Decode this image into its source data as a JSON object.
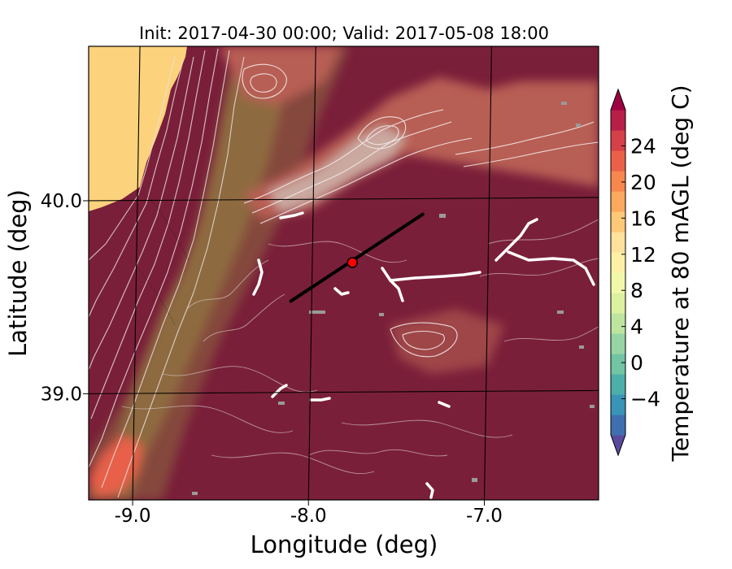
{
  "figure": {
    "title": "Init: 2017-04-30 00:00; Valid: 2017-05-08 18:00",
    "xlabel": "Longitude (deg)",
    "ylabel": "Latitude (deg)"
  },
  "map_data": {
    "type": "contour-filled map",
    "xlim": [
      -9.25,
      -6.35
    ],
    "ylim": [
      38.45,
      40.8
    ],
    "x_ticks": [
      {
        "value": -9.0,
        "label": "-9.0"
      },
      {
        "value": -8.0,
        "label": "-8.0"
      },
      {
        "value": -7.0,
        "label": "-7.0"
      }
    ],
    "y_ticks": [
      {
        "value": 39.0,
        "label": "39.0"
      },
      {
        "value": 40.0,
        "label": "40.0"
      }
    ],
    "graticule": true,
    "marker": {
      "lon": -7.75,
      "lat": 39.68,
      "color": "#ff0000"
    },
    "cross_section_line": {
      "start": [
        -8.1,
        39.48
      ],
      "end": [
        -7.35,
        39.93
      ],
      "color": "#000000"
    },
    "colors": {
      "ocean": "#fdd27c",
      "land_dominant": "#7a1f3a",
      "coast_band": "#8e6a40",
      "highlands": "#b85f54"
    }
  },
  "colorbar": {
    "label": "Temperature at 80 mAGL (deg C)",
    "range": [
      -8,
      28
    ],
    "ticks": [
      {
        "value": -4,
        "label": "−4"
      },
      {
        "value": 0,
        "label": "0"
      },
      {
        "value": 4,
        "label": "4"
      },
      {
        "value": 8,
        "label": "8"
      },
      {
        "value": 12,
        "label": "12"
      },
      {
        "value": 16,
        "label": "16"
      },
      {
        "value": 20,
        "label": "20"
      },
      {
        "value": 24,
        "label": "24"
      }
    ],
    "colors": [
      "#5a4a9e",
      "#3f6fb1",
      "#3a94b8",
      "#4eaeaa",
      "#71c4a4",
      "#98d5a4",
      "#bde5a0",
      "#dcf09f",
      "#f2f8aa",
      "#fdf0a6",
      "#fee19a",
      "#fdc978",
      "#fca95f",
      "#f7874d",
      "#ea6148",
      "#d64049",
      "#b81f48",
      "#9e0142"
    ]
  }
}
